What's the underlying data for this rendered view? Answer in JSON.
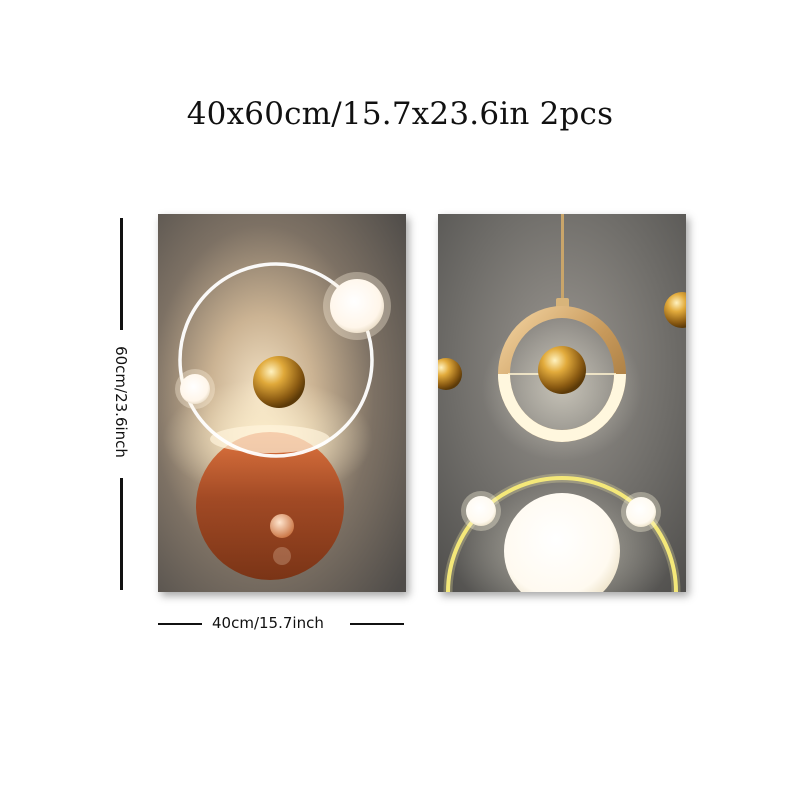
{
  "title": "40x60cm/15.7x23.6in 2pcs",
  "height_label": "60cm/23.6inch",
  "width_label": "40cm/15.7inch",
  "panels": [
    {
      "name": "orange-moon-ring"
    },
    {
      "name": "pendant-gold-sphere"
    }
  ]
}
